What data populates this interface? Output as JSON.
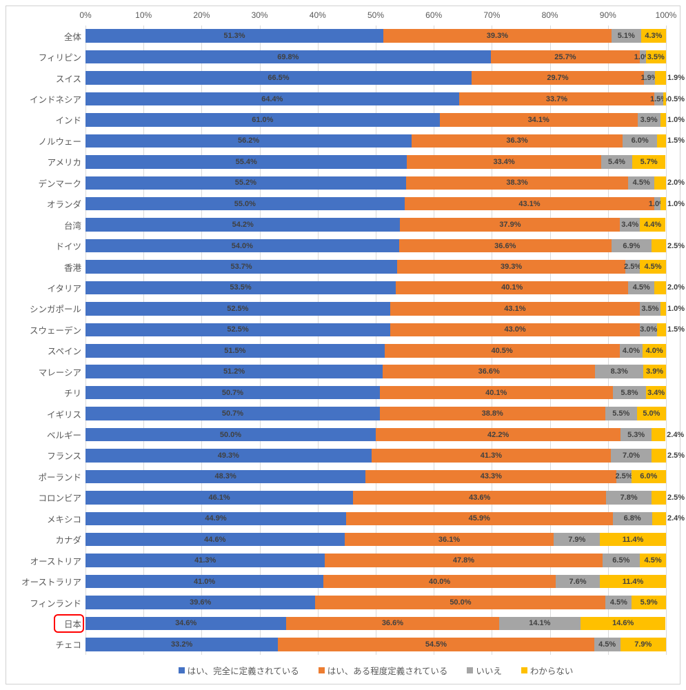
{
  "chart": {
    "type": "stacked-bar-horizontal",
    "background_color": "#ffffff",
    "border_color": "#d0d0d0",
    "grid_color": "#d9d9d9",
    "axis_label_color": "#595959",
    "axis_label_fontsize": 12,
    "category_label_fontsize": 12.5,
    "value_label_fontsize": 11,
    "value_label_color": "#404040",
    "bar_height_ratio": 0.64,
    "xlim": [
      0,
      100
    ],
    "xtick_step": 10,
    "xtick_format": "percent",
    "highlight": {
      "category": "日本",
      "border_color": "#ff0000",
      "border_radius": 6
    },
    "series": [
      {
        "key": "yes_full",
        "label": "はい、完全に定義されている",
        "color": "#4472c4"
      },
      {
        "key": "yes_some",
        "label": "はい、ある程度定義されている",
        "color": "#ed7d31"
      },
      {
        "key": "no",
        "label": "いいえ",
        "color": "#a5a5a5"
      },
      {
        "key": "dont_know",
        "label": "わからない",
        "color": "#ffc000"
      }
    ],
    "categories": [
      {
        "label": "全体",
        "values": {
          "yes_full": 51.3,
          "yes_some": 39.3,
          "no": 5.1,
          "dont_know": 4.3
        }
      },
      {
        "label": "フィリピン",
        "values": {
          "yes_full": 69.8,
          "yes_some": 25.7,
          "no": 1.0,
          "dont_know": 3.5
        }
      },
      {
        "label": "スイス",
        "values": {
          "yes_full": 66.5,
          "yes_some": 29.7,
          "no": 1.9,
          "dont_know": 1.9
        }
      },
      {
        "label": "インドネシア",
        "values": {
          "yes_full": 64.4,
          "yes_some": 33.7,
          "no": 1.5,
          "dont_know": 0.5
        }
      },
      {
        "label": "インド",
        "values": {
          "yes_full": 61.0,
          "yes_some": 34.1,
          "no": 3.9,
          "dont_know": 1.0
        }
      },
      {
        "label": "ノルウェー",
        "values": {
          "yes_full": 56.2,
          "yes_some": 36.3,
          "no": 6.0,
          "dont_know": 1.5
        }
      },
      {
        "label": "アメリカ",
        "values": {
          "yes_full": 55.4,
          "yes_some": 33.4,
          "no": 5.4,
          "dont_know": 5.7
        }
      },
      {
        "label": "デンマーク",
        "values": {
          "yes_full": 55.2,
          "yes_some": 38.3,
          "no": 4.5,
          "dont_know": 2.0
        }
      },
      {
        "label": "オランダ",
        "values": {
          "yes_full": 55.0,
          "yes_some": 43.1,
          "no": 1.0,
          "dont_know": 1.0
        }
      },
      {
        "label": "台湾",
        "values": {
          "yes_full": 54.2,
          "yes_some": 37.9,
          "no": 3.4,
          "dont_know": 4.4
        }
      },
      {
        "label": "ドイツ",
        "values": {
          "yes_full": 54.0,
          "yes_some": 36.6,
          "no": 6.9,
          "dont_know": 2.5
        }
      },
      {
        "label": "香港",
        "values": {
          "yes_full": 53.7,
          "yes_some": 39.3,
          "no": 2.5,
          "dont_know": 4.5
        }
      },
      {
        "label": "イタリア",
        "values": {
          "yes_full": 53.5,
          "yes_some": 40.1,
          "no": 4.5,
          "dont_know": 2.0
        }
      },
      {
        "label": "シンガポール",
        "values": {
          "yes_full": 52.5,
          "yes_some": 43.1,
          "no": 3.5,
          "dont_know": 1.0
        }
      },
      {
        "label": "スウェーデン",
        "values": {
          "yes_full": 52.5,
          "yes_some": 43.0,
          "no": 3.0,
          "dont_know": 1.5
        }
      },
      {
        "label": "スペイン",
        "values": {
          "yes_full": 51.5,
          "yes_some": 40.5,
          "no": 4.0,
          "dont_know": 4.0
        }
      },
      {
        "label": "マレーシア",
        "values": {
          "yes_full": 51.2,
          "yes_some": 36.6,
          "no": 8.3,
          "dont_know": 3.9
        }
      },
      {
        "label": "チリ",
        "values": {
          "yes_full": 50.7,
          "yes_some": 40.1,
          "no": 5.8,
          "dont_know": 3.4
        }
      },
      {
        "label": "イギリス",
        "values": {
          "yes_full": 50.7,
          "yes_some": 38.8,
          "no": 5.5,
          "dont_know": 5.0
        }
      },
      {
        "label": "ベルギー",
        "values": {
          "yes_full": 50.0,
          "yes_some": 42.2,
          "no": 5.3,
          "dont_know": 2.4
        }
      },
      {
        "label": "フランス",
        "values": {
          "yes_full": 49.3,
          "yes_some": 41.3,
          "no": 7.0,
          "dont_know": 2.5
        }
      },
      {
        "label": "ポーランド",
        "values": {
          "yes_full": 48.3,
          "yes_some": 43.3,
          "no": 2.5,
          "dont_know": 6.0
        }
      },
      {
        "label": "コロンビア",
        "values": {
          "yes_full": 46.1,
          "yes_some": 43.6,
          "no": 7.8,
          "dont_know": 2.5
        }
      },
      {
        "label": "メキシコ",
        "values": {
          "yes_full": 44.9,
          "yes_some": 45.9,
          "no": 6.8,
          "dont_know": 2.4
        }
      },
      {
        "label": "カナダ",
        "values": {
          "yes_full": 44.6,
          "yes_some": 36.1,
          "no": 7.9,
          "dont_know": 11.4
        }
      },
      {
        "label": "オーストリア",
        "values": {
          "yes_full": 41.3,
          "yes_some": 47.8,
          "no": 6.5,
          "dont_know": 4.5
        }
      },
      {
        "label": "オーストラリア",
        "values": {
          "yes_full": 41.0,
          "yes_some": 40.0,
          "no": 7.6,
          "dont_know": 11.4
        }
      },
      {
        "label": "フィンランド",
        "values": {
          "yes_full": 39.6,
          "yes_some": 50.0,
          "no": 4.5,
          "dont_know": 5.9
        }
      },
      {
        "label": "日本",
        "values": {
          "yes_full": 34.6,
          "yes_some": 36.6,
          "no": 14.1,
          "dont_know": 14.6
        }
      },
      {
        "label": "チェコ",
        "values": {
          "yes_full": 33.2,
          "yes_some": 54.5,
          "no": 4.5,
          "dont_know": 7.9
        }
      }
    ]
  }
}
